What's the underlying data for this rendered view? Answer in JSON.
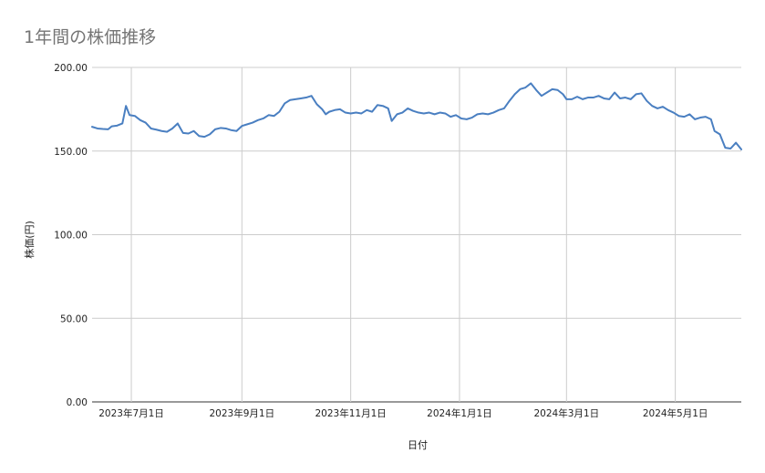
{
  "chart_data": {
    "type": "line",
    "title": "1年間の株価推移",
    "xlabel": "日付",
    "ylabel": "株価(円)",
    "ylim": [
      0,
      200
    ],
    "yticks": [
      "0.00",
      "50.00",
      "100.00",
      "150.00",
      "200.00"
    ],
    "xlim": [
      "2023-06-09",
      "2024-06-07"
    ],
    "xticks": [
      {
        "date": "2023-07-01",
        "label": "2023年7月1日"
      },
      {
        "date": "2023-09-01",
        "label": "2023年9月1日"
      },
      {
        "date": "2023-11-01",
        "label": "2023年11月1日"
      },
      {
        "date": "2024-01-01",
        "label": "2024年1月1日"
      },
      {
        "date": "2024-03-01",
        "label": "2024年3月1日"
      },
      {
        "date": "2024-05-01",
        "label": "2024年5月1日"
      }
    ],
    "grid": true,
    "legend": "none",
    "line_color": "#4a7fc1",
    "series": [
      {
        "points": [
          [
            "2023-06-09",
            164.5
          ],
          [
            "2023-06-12",
            163.5
          ],
          [
            "2023-06-15",
            163.2
          ],
          [
            "2023-06-18",
            163.0
          ],
          [
            "2023-06-20",
            164.8
          ],
          [
            "2023-06-23",
            165.2
          ],
          [
            "2023-06-26",
            166.5
          ],
          [
            "2023-06-28",
            177.0
          ],
          [
            "2023-06-30",
            171.5
          ],
          [
            "2023-07-03",
            171.0
          ],
          [
            "2023-07-06",
            168.5
          ],
          [
            "2023-07-09",
            167.0
          ],
          [
            "2023-07-12",
            163.5
          ],
          [
            "2023-07-15",
            162.8
          ],
          [
            "2023-07-18",
            162.0
          ],
          [
            "2023-07-21",
            161.5
          ],
          [
            "2023-07-24",
            163.5
          ],
          [
            "2023-07-27",
            166.5
          ],
          [
            "2023-07-30",
            160.8
          ],
          [
            "2023-08-02",
            160.5
          ],
          [
            "2023-08-05",
            162.0
          ],
          [
            "2023-08-08",
            159.0
          ],
          [
            "2023-08-11",
            158.5
          ],
          [
            "2023-08-14",
            160.0
          ],
          [
            "2023-08-17",
            163.0
          ],
          [
            "2023-08-20",
            163.8
          ],
          [
            "2023-08-23",
            163.5
          ],
          [
            "2023-08-26",
            162.5
          ],
          [
            "2023-08-29",
            162.0
          ],
          [
            "2023-09-01",
            165.0
          ],
          [
            "2023-09-04",
            166.0
          ],
          [
            "2023-09-07",
            167.0
          ],
          [
            "2023-09-10",
            168.5
          ],
          [
            "2023-09-13",
            169.5
          ],
          [
            "2023-09-16",
            171.5
          ],
          [
            "2023-09-19",
            171.0
          ],
          [
            "2023-09-22",
            173.5
          ],
          [
            "2023-09-25",
            178.5
          ],
          [
            "2023-09-28",
            180.5
          ],
          [
            "2023-10-01",
            181.0
          ],
          [
            "2023-10-04",
            181.5
          ],
          [
            "2023-10-07",
            182.0
          ],
          [
            "2023-10-10",
            183.0
          ],
          [
            "2023-10-13",
            178.0
          ],
          [
            "2023-10-16",
            175.0
          ],
          [
            "2023-10-18",
            172.0
          ],
          [
            "2023-10-20",
            173.5
          ],
          [
            "2023-10-23",
            174.5
          ],
          [
            "2023-10-26",
            175.0
          ],
          [
            "2023-10-29",
            173.0
          ],
          [
            "2023-11-01",
            172.5
          ],
          [
            "2023-11-04",
            173.0
          ],
          [
            "2023-11-07",
            172.5
          ],
          [
            "2023-11-10",
            174.5
          ],
          [
            "2023-11-13",
            173.5
          ],
          [
            "2023-11-16",
            177.5
          ],
          [
            "2023-11-19",
            177.0
          ],
          [
            "2023-11-22",
            175.5
          ],
          [
            "2023-11-24",
            168.0
          ],
          [
            "2023-11-27",
            172.0
          ],
          [
            "2023-11-30",
            173.0
          ],
          [
            "2023-12-03",
            175.5
          ],
          [
            "2023-12-06",
            174.0
          ],
          [
            "2023-12-09",
            173.0
          ],
          [
            "2023-12-12",
            172.5
          ],
          [
            "2023-12-15",
            173.0
          ],
          [
            "2023-12-18",
            172.0
          ],
          [
            "2023-12-21",
            173.0
          ],
          [
            "2023-12-24",
            172.5
          ],
          [
            "2023-12-27",
            170.5
          ],
          [
            "2023-12-30",
            171.5
          ],
          [
            "2024-01-02",
            169.5
          ],
          [
            "2024-01-05",
            169.0
          ],
          [
            "2024-01-08",
            170.0
          ],
          [
            "2024-01-11",
            172.0
          ],
          [
            "2024-01-14",
            172.5
          ],
          [
            "2024-01-17",
            172.0
          ],
          [
            "2024-01-20",
            173.0
          ],
          [
            "2024-01-23",
            174.5
          ],
          [
            "2024-01-26",
            175.5
          ],
          [
            "2024-01-29",
            180.0
          ],
          [
            "2024-02-01",
            184.0
          ],
          [
            "2024-02-04",
            187.0
          ],
          [
            "2024-02-07",
            188.0
          ],
          [
            "2024-02-10",
            190.5
          ],
          [
            "2024-02-13",
            186.5
          ],
          [
            "2024-02-16",
            183.0
          ],
          [
            "2024-02-19",
            185.0
          ],
          [
            "2024-02-22",
            187.0
          ],
          [
            "2024-02-25",
            186.5
          ],
          [
            "2024-02-28",
            184.0
          ],
          [
            "2024-03-01",
            181.0
          ],
          [
            "2024-03-04",
            181.0
          ],
          [
            "2024-03-07",
            182.5
          ],
          [
            "2024-03-10",
            181.0
          ],
          [
            "2024-03-13",
            182.0
          ],
          [
            "2024-03-16",
            182.0
          ],
          [
            "2024-03-19",
            183.0
          ],
          [
            "2024-03-22",
            181.5
          ],
          [
            "2024-03-25",
            181.0
          ],
          [
            "2024-03-28",
            185.0
          ],
          [
            "2024-03-31",
            181.5
          ],
          [
            "2024-04-03",
            182.0
          ],
          [
            "2024-04-06",
            181.0
          ],
          [
            "2024-04-09",
            184.0
          ],
          [
            "2024-04-12",
            184.5
          ],
          [
            "2024-04-15",
            180.0
          ],
          [
            "2024-04-18",
            177.0
          ],
          [
            "2024-04-21",
            175.5
          ],
          [
            "2024-04-24",
            176.5
          ],
          [
            "2024-04-27",
            174.5
          ],
          [
            "2024-04-30",
            173.0
          ],
          [
            "2024-05-03",
            171.0
          ],
          [
            "2024-05-06",
            170.5
          ],
          [
            "2024-05-09",
            172.0
          ],
          [
            "2024-05-12",
            169.0
          ],
          [
            "2024-05-15",
            170.0
          ],
          [
            "2024-05-18",
            170.5
          ],
          [
            "2024-05-21",
            169.0
          ],
          [
            "2024-05-23",
            162.0
          ],
          [
            "2024-05-26",
            160.0
          ],
          [
            "2024-05-29",
            152.0
          ],
          [
            "2024-06-01",
            151.5
          ],
          [
            "2024-06-04",
            155.0
          ],
          [
            "2024-06-07",
            151.0
          ]
        ]
      }
    ]
  }
}
